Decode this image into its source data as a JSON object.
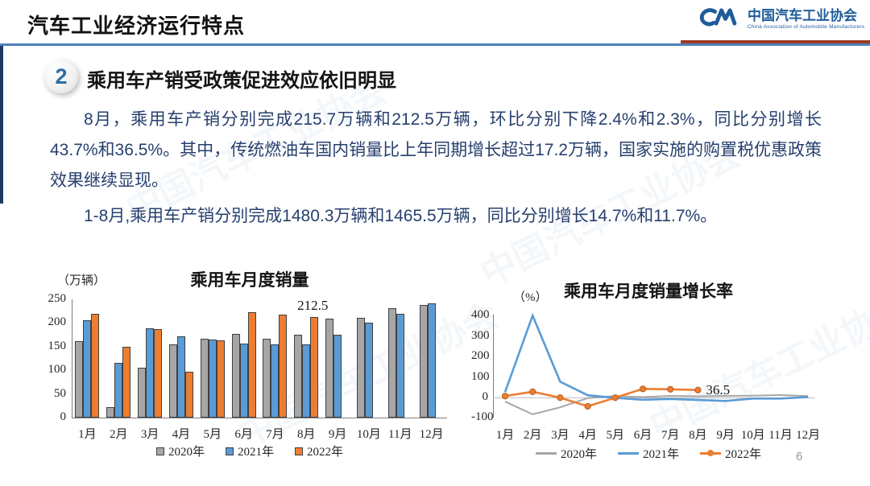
{
  "header": {
    "title": "汽车工业经济运行特点",
    "logo": {
      "monogram": "CM",
      "org_cn": "中国汽车工业协会",
      "org_en": "China Association of Automobile Manufacturers"
    }
  },
  "section": {
    "number": "2",
    "heading": "乘用车产销受政策促进效应依旧明显"
  },
  "paragraphs": [
    "8月，乘用车产销分别完成215.7万辆和212.5万辆，环比分别下降2.4%和2.3%，同比分别增长43.7%和36.5%。其中，传统燃油车国内销量比上年同期增长超过17.2万辆，国家实施的购置税优惠政策效果继续显现。",
    "1-8月,乘用车产销分别完成1480.3万辆和1465.5万辆，同比分别增长14.7%和11.7%。"
  ],
  "page_number": "6",
  "watermark": "中国汽车工业协会",
  "colors": {
    "accent_blue_rule": "#4f81bd",
    "accent_red_rule": "#9c3a22",
    "logo_blue": "#1f5c99",
    "body_text": "#27406e",
    "series_2020": "#a6a6a6",
    "series_2021": "#5b9bd5",
    "series_2022": "#ed7d31"
  },
  "chart_data": [
    {
      "type": "bar",
      "title": "乘用车月度销量",
      "unit": "（万辆）",
      "categories": [
        "1月",
        "2月",
        "3月",
        "4月",
        "5月",
        "6月",
        "7月",
        "8月",
        "9月",
        "10月",
        "11月",
        "12月"
      ],
      "series": [
        {
          "name": "2020年",
          "color": "#a6a6a6",
          "values": [
            161,
            22,
            105,
            154,
            167,
            177,
            166,
            175,
            209,
            211,
            231,
            238
          ]
        },
        {
          "name": "2021年",
          "color": "#5b9bd5",
          "values": [
            205,
            116,
            188,
            171,
            165,
            157,
            155,
            155,
            175,
            200,
            220,
            242
          ]
        },
        {
          "name": "2022年",
          "color": "#ed7d31",
          "values": [
            220,
            149,
            187,
            97,
            163,
            223,
            218,
            212.5
          ]
        }
      ],
      "ylim": [
        0,
        250
      ],
      "yticks": [
        0,
        50,
        100,
        150,
        200,
        250
      ],
      "grid": false,
      "legend_position": "bottom",
      "annotation": {
        "text": "212.5",
        "series": "2022年",
        "category": "8月"
      }
    },
    {
      "type": "line",
      "title": "乘用车月度销量增长率",
      "unit": "（%）",
      "categories": [
        "1月",
        "2月",
        "3月",
        "4月",
        "5月",
        "6月",
        "7月",
        "8月",
        "9月",
        "10月",
        "11月",
        "12月"
      ],
      "series": [
        {
          "name": "2020年",
          "color": "#a6a6a6",
          "marker": false,
          "values": [
            -20,
            -82,
            -48,
            -3,
            7,
            2,
            8,
            6,
            8,
            9,
            12,
            7
          ]
        },
        {
          "name": "2021年",
          "color": "#5b9bd5",
          "marker": false,
          "values": [
            27,
            400,
            77,
            11,
            -2,
            -11,
            -7,
            -12,
            -17,
            -5,
            -5,
            2
          ]
        },
        {
          "name": "2022年",
          "color": "#ed7d31",
          "marker": true,
          "values": [
            7,
            28,
            -1,
            -43,
            -1,
            42,
            40,
            36.5
          ]
        }
      ],
      "ylim": [
        -100,
        400
      ],
      "yticks": [
        -100,
        0,
        100,
        200,
        300,
        400
      ],
      "grid": false,
      "legend_position": "bottom",
      "annotation": {
        "text": "36.5",
        "series": "2022年",
        "category": "8月"
      }
    }
  ]
}
